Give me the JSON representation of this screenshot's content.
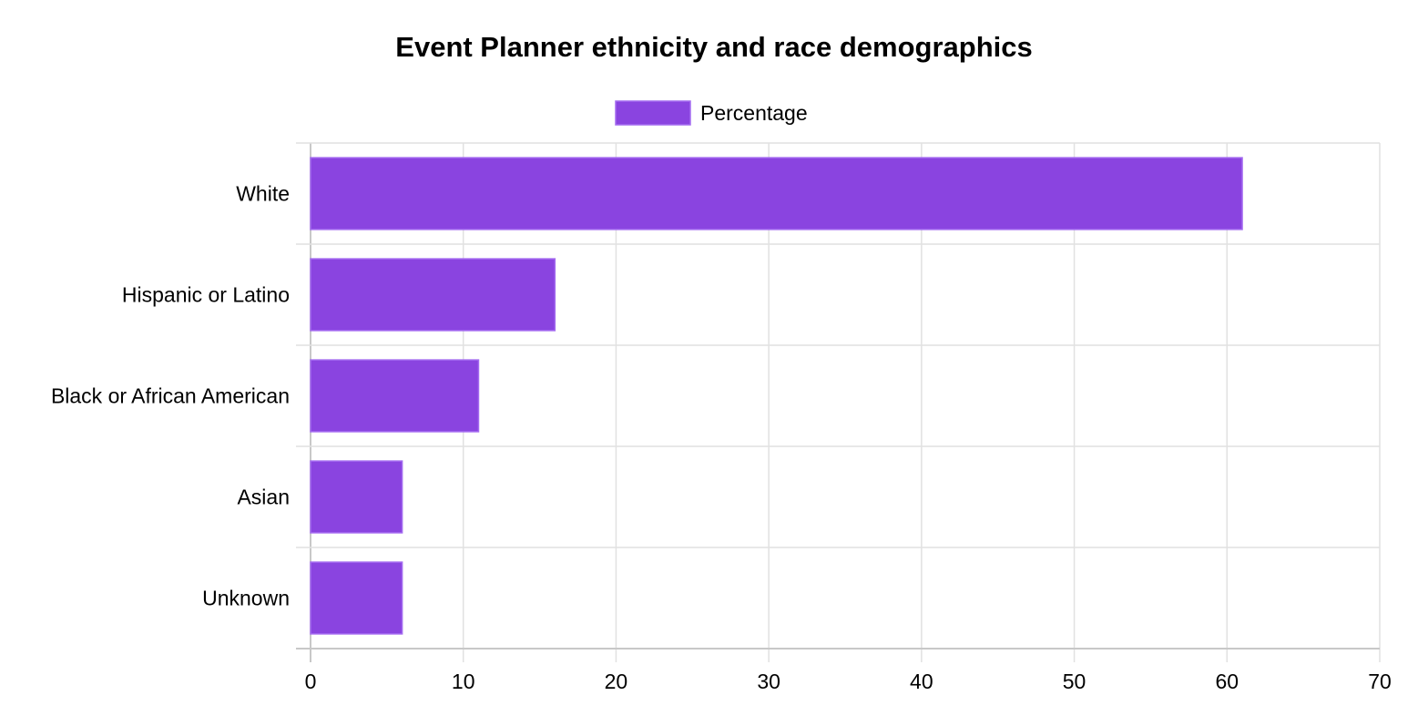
{
  "chart_data": {
    "type": "bar",
    "orientation": "horizontal",
    "title": "Event Planner ethnicity and race demographics",
    "categories": [
      "White",
      "Hispanic or Latino",
      "Black or African American",
      "Asian",
      "Unknown"
    ],
    "series": [
      {
        "name": "Percentage",
        "values": [
          61,
          16,
          11,
          6,
          6
        ]
      }
    ],
    "xlim": [
      0,
      70
    ],
    "xticks": [
      "0",
      "10",
      "20",
      "30",
      "40",
      "50",
      "60",
      "70"
    ],
    "grid": true,
    "legend_position": "top",
    "colors": {
      "bar_fill": "#8a44e0",
      "bar_border": "#a46bf0"
    }
  }
}
